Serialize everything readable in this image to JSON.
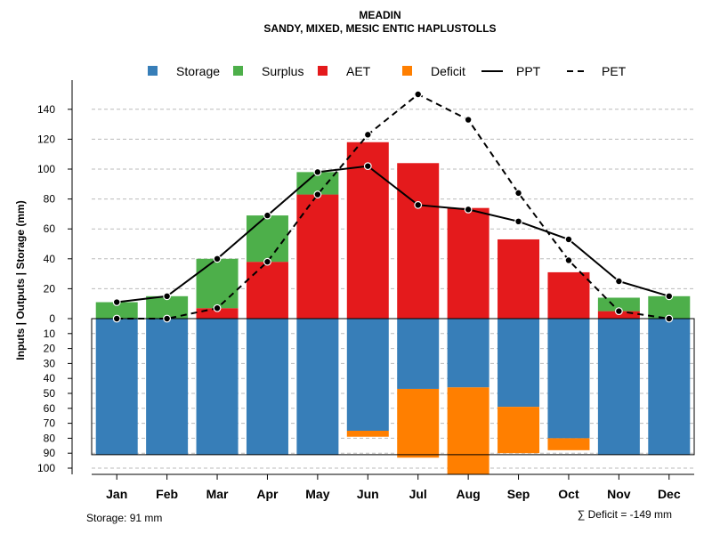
{
  "chart_data": {
    "type": "bar",
    "title": "MEADIN",
    "subtitle": "SANDY, MIXED, MESIC ENTIC HAPLUSTOLLS",
    "ylabel": "Inputs | Outputs | Storage    (mm)",
    "categories": [
      "Jan",
      "Feb",
      "Mar",
      "Apr",
      "May",
      "Jun",
      "Jul",
      "Aug",
      "Sep",
      "Oct",
      "Nov",
      "Dec"
    ],
    "upper": {
      "ylim": [
        0,
        150
      ],
      "ticks": [
        0,
        20,
        40,
        60,
        80,
        100,
        120,
        140
      ],
      "aet": [
        0,
        0,
        7,
        38,
        83,
        118,
        104,
        74,
        53,
        31,
        5,
        0
      ],
      "surplus": [
        11,
        15,
        33,
        31,
        15,
        0,
        0,
        0,
        0,
        0,
        9,
        15
      ],
      "ppt": [
        11,
        15,
        40,
        69,
        98,
        102,
        76,
        73,
        65,
        53,
        25,
        15
      ],
      "pet": [
        0,
        0,
        7,
        38,
        83,
        123,
        150,
        133,
        84,
        39,
        5,
        0
      ]
    },
    "lower": {
      "ticks": [
        10,
        20,
        30,
        40,
        50,
        60,
        70,
        80,
        90,
        100
      ],
      "tick_labels": [
        "10",
        "20",
        "30",
        "40",
        "50",
        "60",
        "70",
        "80",
        "90",
        "100"
      ],
      "storage": [
        91,
        91,
        91,
        91,
        91,
        75,
        47,
        46,
        59,
        80,
        91,
        91
      ],
      "deficit": [
        0,
        0,
        0,
        0,
        0,
        4,
        46,
        58,
        31,
        8,
        0,
        0
      ]
    },
    "legend": [
      {
        "label": "Storage",
        "kind": "box",
        "color": "#377EB8"
      },
      {
        "label": "Surplus",
        "kind": "box",
        "color": "#4DAF4A"
      },
      {
        "label": "AET",
        "kind": "box",
        "color": "#E41A1C"
      },
      {
        "label": "Deficit",
        "kind": "box",
        "color": "#FF7F00"
      },
      {
        "label": "PPT",
        "kind": "solid"
      },
      {
        "label": "PET",
        "kind": "dashed"
      }
    ],
    "colors": {
      "storage": "#377EB8",
      "surplus": "#4DAF4A",
      "aet": "#E41A1C",
      "deficit": "#FF7F00",
      "grid": "#bbbbbb"
    },
    "footer_left": "Storage: 91 mm",
    "footer_right": "∑ Deficit = -149 mm"
  }
}
